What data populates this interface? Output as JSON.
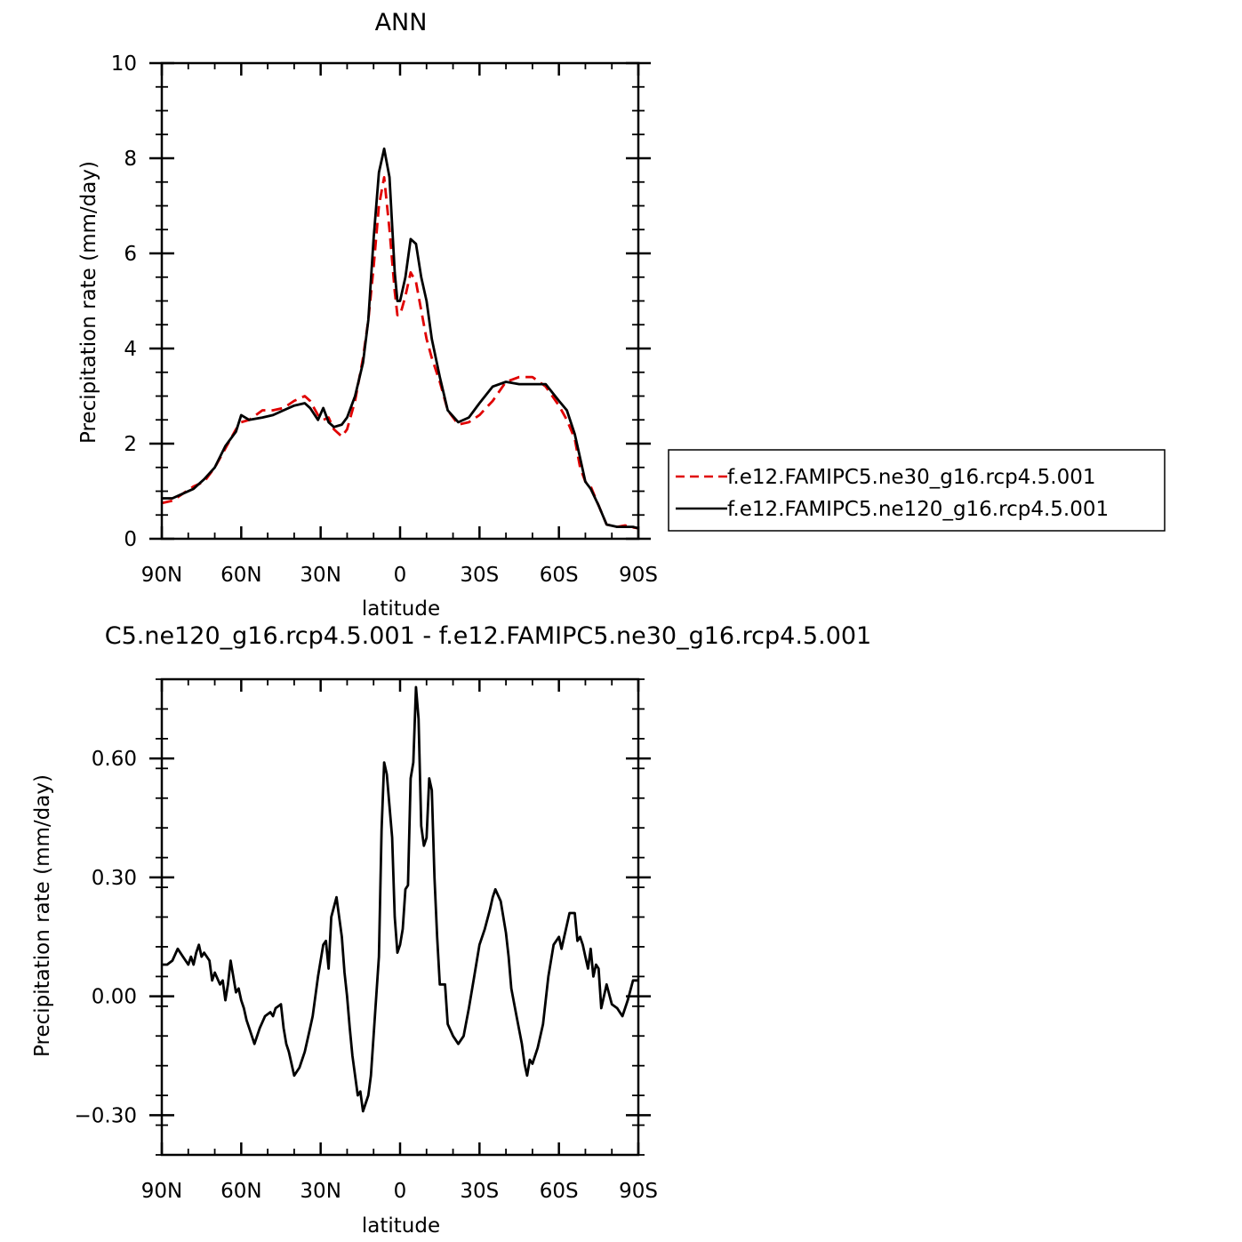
{
  "chart_data": [
    {
      "type": "line",
      "title": "ANN",
      "xlabel": "latitude",
      "ylabel": "Precipitation rate (mm/day)",
      "xlim": [
        -90,
        90
      ],
      "ylim": [
        0,
        10
      ],
      "x_direction": "north-to-south",
      "x_ticks": [
        {
          "value": -90,
          "label": "90N"
        },
        {
          "value": -60,
          "label": "60N"
        },
        {
          "value": -30,
          "label": "30N"
        },
        {
          "value": 0,
          "label": "0"
        },
        {
          "value": 30,
          "label": "30S"
        },
        {
          "value": 60,
          "label": "60S"
        },
        {
          "value": 90,
          "label": "90S"
        }
      ],
      "y_ticks": [
        {
          "value": 0,
          "label": "0"
        },
        {
          "value": 2,
          "label": "2"
        },
        {
          "value": 4,
          "label": "4"
        },
        {
          "value": 6,
          "label": "6"
        },
        {
          "value": 8,
          "label": "8"
        },
        {
          "value": 10,
          "label": "10"
        }
      ],
      "grid": false,
      "legend_position": "right",
      "series": [
        {
          "name": "f.e12.FAMIPC5.ne30_g16.rcp4.5.001",
          "color": "#e00000",
          "dash": "dashed",
          "x": [
            -90,
            -86,
            -82,
            -78,
            -74,
            -70,
            -66,
            -62,
            -60,
            -57,
            -52,
            -48,
            -44,
            -40,
            -36,
            -34,
            -31,
            -29,
            -27,
            -25,
            -22,
            -20,
            -17,
            -14,
            -12,
            -10,
            -8,
            -6,
            -4,
            -2,
            -1,
            0,
            2,
            4,
            6,
            8,
            10,
            12,
            15,
            18,
            22,
            26,
            30,
            35,
            40,
            45,
            50,
            55,
            60,
            63,
            66,
            68,
            70,
            72,
            75,
            78,
            82,
            85,
            88,
            90
          ],
          "y": [
            0.75,
            0.8,
            0.95,
            1.1,
            1.2,
            1.5,
            1.9,
            2.3,
            2.45,
            2.5,
            2.7,
            2.7,
            2.75,
            2.9,
            3.0,
            2.9,
            2.6,
            2.5,
            2.55,
            2.3,
            2.15,
            2.3,
            2.9,
            3.8,
            4.6,
            5.7,
            7.0,
            7.6,
            6.5,
            5.2,
            4.7,
            4.7,
            5.1,
            5.6,
            5.4,
            4.8,
            4.2,
            3.8,
            3.3,
            2.7,
            2.4,
            2.45,
            2.6,
            2.9,
            3.3,
            3.4,
            3.4,
            3.2,
            2.8,
            2.5,
            2.1,
            1.5,
            1.2,
            1.1,
            0.7,
            0.3,
            0.25,
            0.28,
            0.24,
            0.22
          ]
        },
        {
          "name": "f.e12.FAMIPC5.ne120_g16.rcp4.5.001",
          "color": "#000000",
          "dash": "solid",
          "x": [
            -90,
            -86,
            -82,
            -78,
            -74,
            -70,
            -66,
            -62,
            -60,
            -57,
            -52,
            -48,
            -44,
            -40,
            -36,
            -34,
            -31,
            -29,
            -27,
            -25,
            -22,
            -20,
            -17,
            -14,
            -12,
            -10,
            -8,
            -6,
            -4,
            -2,
            -1,
            0,
            2,
            4,
            6,
            8,
            10,
            12,
            15,
            18,
            22,
            26,
            30,
            35,
            40,
            45,
            50,
            55,
            60,
            63,
            66,
            68,
            70,
            72,
            75,
            78,
            82,
            85,
            88,
            90
          ],
          "y": [
            0.85,
            0.85,
            0.95,
            1.05,
            1.25,
            1.5,
            1.95,
            2.25,
            2.6,
            2.5,
            2.55,
            2.6,
            2.7,
            2.8,
            2.85,
            2.75,
            2.5,
            2.75,
            2.45,
            2.35,
            2.4,
            2.55,
            3.0,
            3.7,
            4.6,
            6.3,
            7.7,
            8.2,
            7.6,
            5.6,
            5.0,
            5.0,
            5.5,
            6.3,
            6.2,
            5.5,
            5.0,
            4.2,
            3.4,
            2.7,
            2.45,
            2.55,
            2.85,
            3.2,
            3.3,
            3.25,
            3.25,
            3.25,
            2.9,
            2.7,
            2.2,
            1.7,
            1.2,
            1.05,
            0.7,
            0.3,
            0.25,
            0.25,
            0.25,
            0.22
          ]
        }
      ]
    },
    {
      "type": "line",
      "title": "C5.ne120_g16.rcp4.5.001 - f.e12.FAMIPC5.ne30_g16.rcp4.5.001",
      "xlabel": "latitude",
      "ylabel": "Precipitation rate (mm/day)",
      "xlim": [
        -90,
        90
      ],
      "ylim": [
        -0.4,
        0.8
      ],
      "x_direction": "north-to-south",
      "x_ticks": [
        {
          "value": -90,
          "label": "90N"
        },
        {
          "value": -60,
          "label": "60N"
        },
        {
          "value": -30,
          "label": "30N"
        },
        {
          "value": 0,
          "label": "0"
        },
        {
          "value": 30,
          "label": "30S"
        },
        {
          "value": 60,
          "label": "60S"
        },
        {
          "value": 90,
          "label": "90S"
        }
      ],
      "y_ticks": [
        {
          "value": -0.3,
          "label": "−0.30"
        },
        {
          "value": 0.0,
          "label": "0.00"
        },
        {
          "value": 0.3,
          "label": "0.30"
        },
        {
          "value": 0.6,
          "label": "0.60"
        }
      ],
      "grid": false,
      "series": [
        {
          "color": "#000000",
          "dash": "solid",
          "x": [
            -90,
            -88,
            -86,
            -84,
            -82,
            -80,
            -79,
            -78,
            -77,
            -76,
            -75,
            -74,
            -72,
            -71,
            -70,
            -68,
            -67,
            -66,
            -65,
            -64,
            -62,
            -61,
            -60,
            -59,
            -58,
            -57,
            -55,
            -53,
            -51,
            -49,
            -48,
            -47,
            -45,
            -44,
            -43,
            -42,
            -40,
            -38,
            -37,
            -36,
            -34,
            -33,
            -31,
            -29,
            -28,
            -27,
            -26,
            -24,
            -22,
            -21,
            -20,
            -19,
            -18,
            -16,
            -15,
            -14,
            -13,
            -12,
            -11,
            -10,
            -8,
            -7,
            -6,
            -5,
            -4,
            -3,
            -2,
            -1,
            0,
            1,
            2,
            3,
            4,
            5,
            6,
            7,
            8,
            9,
            10,
            11,
            12,
            13,
            14,
            15,
            16,
            17,
            18,
            20,
            22,
            24,
            26,
            28,
            30,
            32,
            34,
            35,
            36,
            38,
            40,
            41,
            42,
            44,
            46,
            47,
            48,
            49,
            50,
            52,
            54,
            56,
            58,
            60,
            61,
            62,
            63,
            64,
            66,
            67,
            68,
            69,
            70,
            71,
            72,
            73,
            74,
            75,
            76,
            78,
            80,
            82,
            84,
            86,
            88,
            90
          ],
          "y": [
            0.08,
            0.08,
            0.09,
            0.12,
            0.1,
            0.08,
            0.1,
            0.08,
            0.11,
            0.13,
            0.1,
            0.11,
            0.09,
            0.04,
            0.06,
            0.03,
            0.04,
            -0.01,
            0.03,
            0.09,
            0.01,
            0.02,
            -0.01,
            -0.03,
            -0.06,
            -0.08,
            -0.12,
            -0.08,
            -0.05,
            -0.04,
            -0.05,
            -0.03,
            -0.02,
            -0.08,
            -0.12,
            -0.14,
            -0.2,
            -0.18,
            -0.16,
            -0.14,
            -0.08,
            -0.05,
            0.05,
            0.13,
            0.14,
            0.07,
            0.2,
            0.25,
            0.15,
            0.06,
            0.0,
            -0.08,
            -0.15,
            -0.25,
            -0.24,
            -0.29,
            -0.27,
            -0.25,
            -0.2,
            -0.1,
            0.1,
            0.42,
            0.59,
            0.56,
            0.48,
            0.4,
            0.2,
            0.11,
            0.13,
            0.17,
            0.27,
            0.28,
            0.55,
            0.59,
            0.78,
            0.7,
            0.43,
            0.38,
            0.4,
            0.55,
            0.52,
            0.3,
            0.15,
            0.03,
            0.03,
            0.03,
            -0.07,
            -0.1,
            -0.12,
            -0.1,
            -0.03,
            0.05,
            0.13,
            0.17,
            0.22,
            0.25,
            0.27,
            0.24,
            0.16,
            0.1,
            0.02,
            -0.05,
            -0.12,
            -0.17,
            -0.2,
            -0.16,
            -0.17,
            -0.13,
            -0.07,
            0.05,
            0.13,
            0.15,
            0.12,
            0.15,
            0.18,
            0.21,
            0.21,
            0.14,
            0.15,
            0.13,
            0.1,
            0.07,
            0.12,
            0.05,
            0.08,
            0.07,
            -0.03,
            0.03,
            -0.02,
            -0.03,
            -0.05,
            -0.01,
            0.04,
            0.04
          ]
        }
      ]
    }
  ]
}
